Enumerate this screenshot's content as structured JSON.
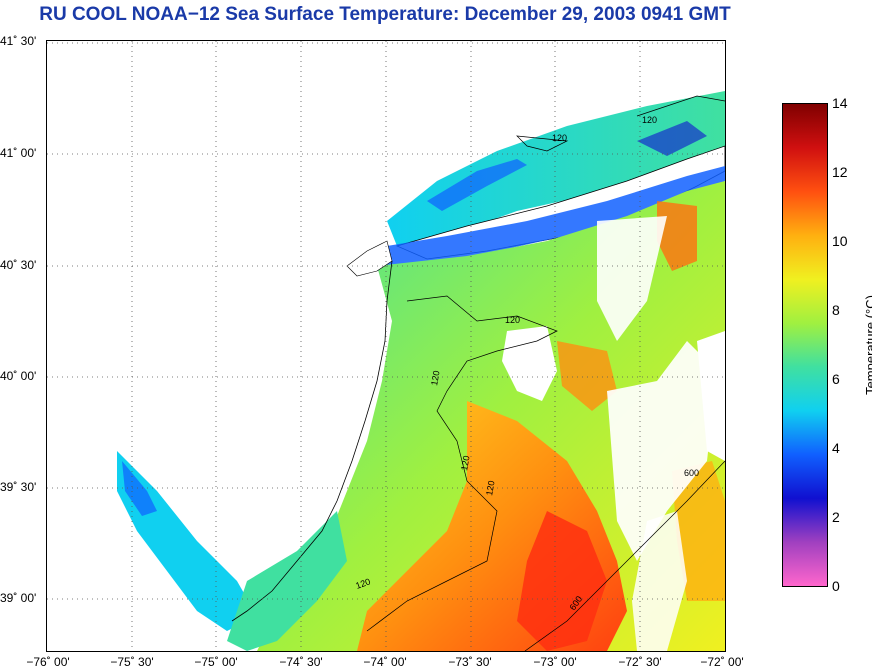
{
  "title": "RU COOL  NOAA−12  Sea Surface Temperature:  December 29, 2003 0941 GMT",
  "lat_labels": [
    "41˚ 30'",
    "41˚ 00'",
    "40˚ 30'",
    "40˚ 00'",
    "39˚ 30'",
    "39˚ 00'"
  ],
  "lon_labels": [
    "−76˚ 00'",
    "−75˚ 30'",
    "−75˚ 00'",
    "−74˚ 30'",
    "−74˚ 00'",
    "−73˚ 30'",
    "−73˚ 00'",
    "−72˚ 30'",
    "−72˚ 00'"
  ],
  "colorbar": {
    "label": "Temperature (°C)",
    "ticks": [
      "14",
      "12",
      "10",
      "8",
      "6",
      "4",
      "2",
      "0"
    ],
    "colors": [
      "#ff66cc",
      "#a040c0",
      "#1010d0",
      "#1060ff",
      "#10d0f0",
      "#40e0a0",
      "#a0f040",
      "#f0f020",
      "#ffb010",
      "#ff5010",
      "#d01010",
      "#800000"
    ]
  },
  "contour_labels": [
    "120",
    "120",
    "120",
    "120",
    "120",
    "120",
    "120",
    "600",
    "600"
  ],
  "map": {
    "land_color": "#ffffff",
    "coast_color": "#000000",
    "grid_color": "#555555"
  }
}
